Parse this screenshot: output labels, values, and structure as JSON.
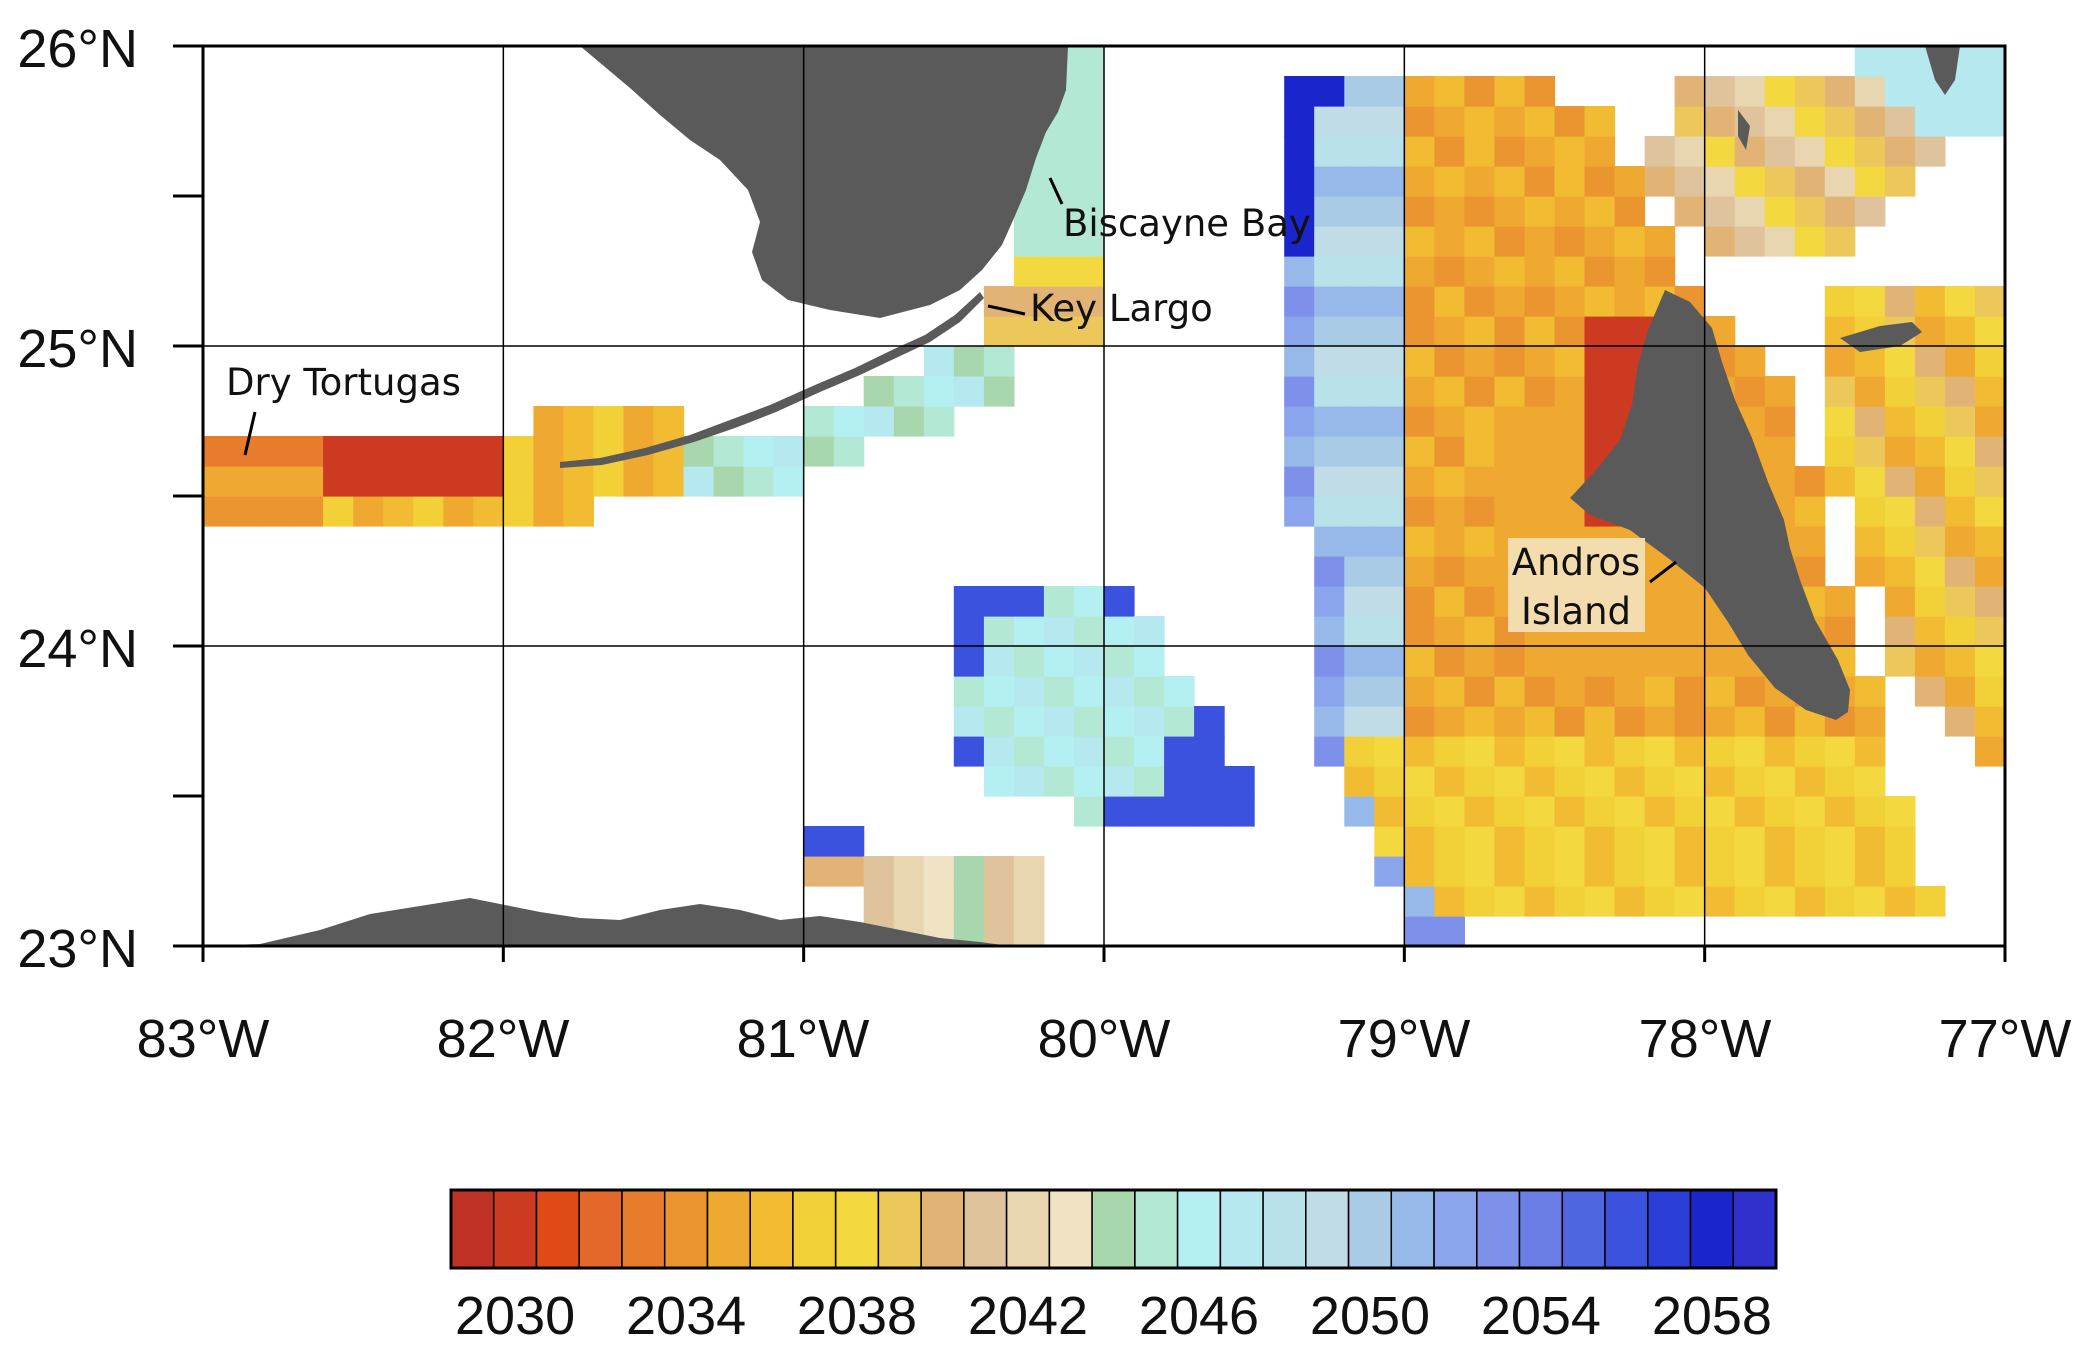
{
  "map": {
    "lat_labels": [
      "26°N",
      "25°N",
      "24°N",
      "23°N"
    ],
    "lon_labels": [
      "83°W",
      "82°W",
      "81°W",
      "80°W",
      "79°W",
      "78°W",
      "77°W"
    ],
    "lon_range": [
      -83,
      -77
    ],
    "lat_range": [
      23,
      26
    ],
    "place_labels": {
      "biscayne_bay": "Biscayne Bay",
      "key_largo": "Key Largo",
      "dry_tortugas": "Dry Tortugas",
      "andros_line1": "Andros",
      "andros_line2": "Island"
    },
    "colors": {
      "land": "#5a5a5a",
      "grid": "#000000",
      "andros_label_bg": "#f3dcae"
    }
  },
  "colorbar": {
    "tick_labels": [
      "2030",
      "2034",
      "2038",
      "2042",
      "2046",
      "2050",
      "2054",
      "2058"
    ],
    "range": [
      2029,
      2061
    ],
    "colors": [
      "#bf3326",
      "#cc3a22",
      "#df4a17",
      "#e3682a",
      "#e77d2c",
      "#eb9531",
      "#efa830",
      "#f1bc32",
      "#f2d038",
      "#f3d840",
      "#ecc85a",
      "#e1b475",
      "#dfc39c",
      "#e8d6b0",
      "#efe3c4",
      "#a8d7ad",
      "#b2e8d4",
      "#b4f0f2",
      "#b6e9ef",
      "#b8e1ea",
      "#c0dce6",
      "#a9cbe6",
      "#97b9ea",
      "#8aa5ec",
      "#7d91ea",
      "#6b7ee6",
      "#4e66e0",
      "#3a52dd",
      "#2b3fd8",
      "#1a25cc",
      "#3030cc"
    ]
  }
}
